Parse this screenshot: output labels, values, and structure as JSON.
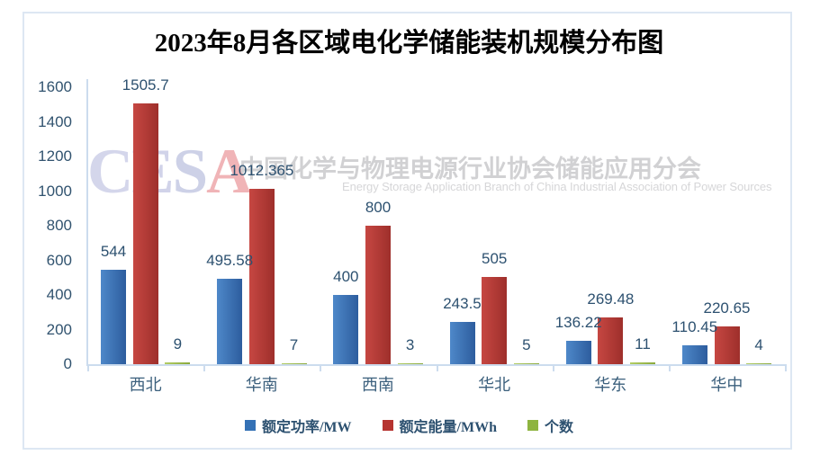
{
  "chart_data": {
    "type": "bar",
    "title": "2023年8月各区域电化学储能装机规模分布图",
    "categories": [
      "西北",
      "华南",
      "西南",
      "华北",
      "华东",
      "华中"
    ],
    "series": [
      {
        "name": "额定功率/MW",
        "color": "#3471b5",
        "gradient": [
          "#4e88c9",
          "#2d5d9e"
        ],
        "values": [
          544,
          495.58,
          400,
          243.5,
          136.22,
          110.45
        ],
        "labels": [
          "544",
          "495.58",
          "400",
          "243.5",
          "136.22",
          "110.45"
        ]
      },
      {
        "name": "额定能量/MWh",
        "color": "#b63430",
        "gradient": [
          "#c64742",
          "#9e2f2b"
        ],
        "values": [
          1505.7,
          1012.365,
          800,
          505,
          269.48,
          220.65
        ],
        "labels": [
          "1505.7",
          "1012.365",
          "800",
          "505",
          "269.48",
          "220.65"
        ]
      },
      {
        "name": "个数",
        "color": "#8eb440",
        "gradient": [
          "#b3cd64",
          "#8aa93c"
        ],
        "values": [
          9,
          7,
          3,
          5,
          11,
          4
        ],
        "labels": [
          "9",
          "7",
          "3",
          "5",
          "11",
          "4"
        ]
      }
    ],
    "ylim": [
      0,
      1600
    ],
    "ytick_step": 200,
    "ytick_labels": [
      "0",
      "200",
      "400",
      "600",
      "800",
      "1000",
      "1200",
      "1400",
      "1600"
    ],
    "grid": false,
    "legend_position": "bottom",
    "xlabel": "",
    "ylabel": ""
  },
  "watermark": {
    "logo_letters": [
      {
        "ch": "C",
        "color": "#d4d6eb"
      },
      {
        "ch": "E",
        "color": "#d1d3e9"
      },
      {
        "ch": "S",
        "color": "#cdd1e7"
      },
      {
        "ch": "A",
        "color": "#f0b4b7"
      }
    ],
    "cn": "中国化学与物理电源行业协会储能应用分会",
    "en": "Energy Storage Application Branch of China Industrial Association of Power Sources"
  },
  "colors": {
    "frame_border": "#dde7f3",
    "axis": "#ccdcee",
    "tick_label": "#31536f",
    "data_label": "#2d5170",
    "title": "#000000"
  }
}
